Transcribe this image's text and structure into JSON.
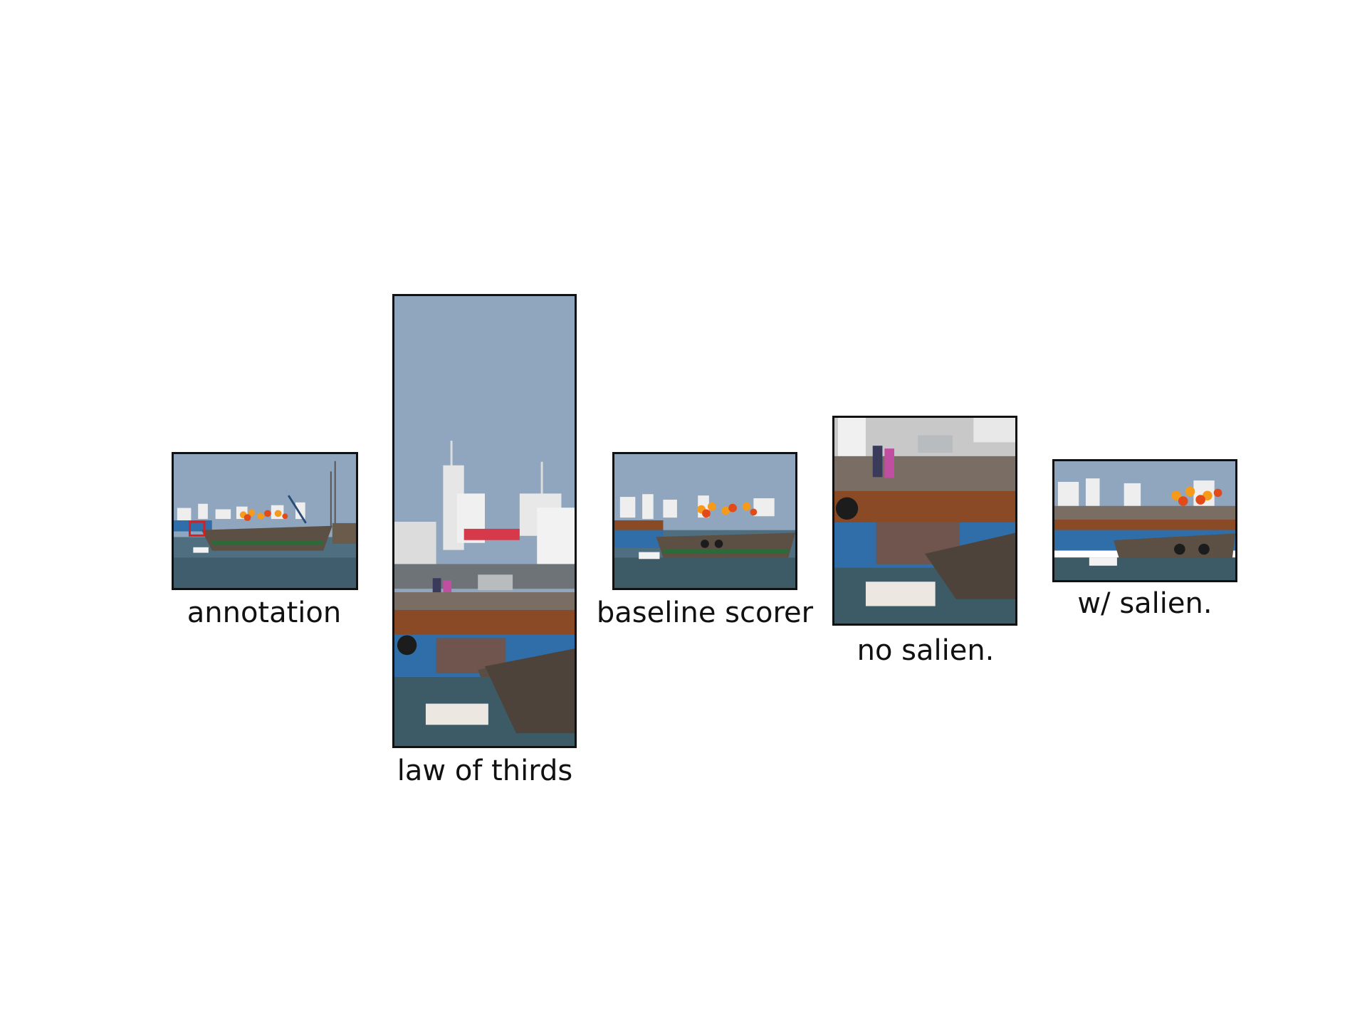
{
  "figure": {
    "panels": [
      {
        "caption": "annotation",
        "image": "harbor-full-view-with-red-box"
      },
      {
        "caption": "law of thirds",
        "image": "harbor-tall-crop"
      },
      {
        "caption": "baseline scorer",
        "image": "harbor-wide-crop"
      },
      {
        "caption": "no salien.",
        "image": "harbor-dock-crop"
      },
      {
        "caption": "w/ salien.",
        "image": "harbor-boat-crop"
      }
    ]
  },
  "colors": {
    "sky": "#8fa6be",
    "water": "#4f6f80",
    "hull_blue": "#2f6ea8",
    "rust": "#8a4a26",
    "annotation_box": "#e01b1b",
    "border": "#111111"
  }
}
